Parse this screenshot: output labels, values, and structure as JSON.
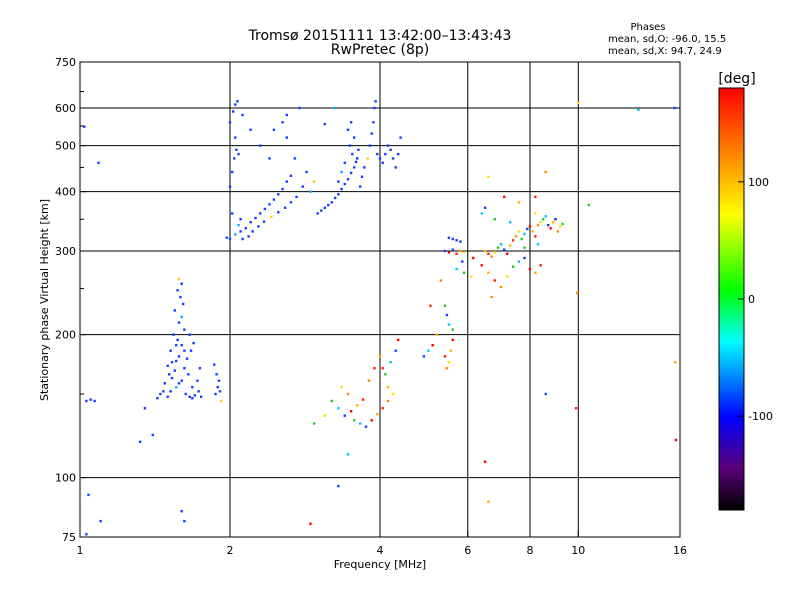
{
  "chart_data": {
    "type": "scatter",
    "title": "Tromsø 20151111 13:42:00–13:43:43",
    "subtitle": "RwPretec (8p)",
    "xlabel": "Frequency [MHz]",
    "ylabel": "Stationary phase Virtual Height [km]",
    "x_scale": "log",
    "y_scale": "log",
    "xlim": [
      1,
      16
    ],
    "ylim": [
      75,
      750
    ],
    "x_ticks": [
      1,
      2,
      4,
      6,
      8,
      10,
      16
    ],
    "y_ticks": [
      75,
      100,
      200,
      300,
      400,
      500,
      600,
      750
    ],
    "grid": true,
    "phase_info": {
      "heading": "Phases",
      "line_o": "mean, sd,O: -96.0, 15.5",
      "line_x": "mean, sd,X:  94.7, 24.9"
    },
    "colorbar": {
      "label": "[deg]",
      "range": [
        -180,
        180
      ],
      "ticks": [
        "100",
        "0",
        "-100"
      ],
      "tick_values": [
        100,
        0,
        -100
      ]
    },
    "series": [
      {
        "points": [
          [
            1.03,
            145
          ],
          [
            1.05,
            146
          ],
          [
            1.07,
            145
          ],
          [
            1.09,
            460
          ],
          [
            1.02,
            548
          ],
          [
            1.04,
            92
          ],
          [
            1.1,
            81
          ],
          [
            1.03,
            76
          ],
          [
            1.5,
            148
          ],
          [
            1.52,
            152
          ],
          [
            1.48,
            158
          ],
          [
            1.53,
            162
          ],
          [
            1.55,
            168
          ],
          [
            1.5,
            172
          ],
          [
            1.56,
            176
          ],
          [
            1.58,
            180
          ],
          [
            1.52,
            185
          ],
          [
            1.6,
            190
          ],
          [
            1.57,
            195
          ],
          [
            1.54,
            200
          ],
          [
            1.62,
            205
          ],
          [
            1.58,
            212
          ],
          [
            1.6,
            218
          ],
          [
            1.55,
            225
          ],
          [
            1.61,
            232
          ],
          [
            1.59,
            240
          ],
          [
            1.57,
            248
          ],
          [
            1.6,
            256
          ],
          [
            1.58,
            262
          ],
          [
            1.63,
            150
          ],
          [
            1.66,
            148
          ],
          [
            1.7,
            149
          ],
          [
            1.75,
            148
          ],
          [
            1.68,
            155
          ],
          [
            1.72,
            160
          ],
          [
            1.65,
            165
          ],
          [
            1.74,
            170
          ],
          [
            1.45,
            150
          ],
          [
            1.43,
            147
          ],
          [
            1.47,
            152
          ],
          [
            1.64,
            178
          ],
          [
            1.67,
            185
          ],
          [
            1.69,
            192
          ],
          [
            1.66,
            200
          ],
          [
            1.62,
            185
          ],
          [
            1.56,
            155
          ],
          [
            1.6,
            160
          ],
          [
            1.53,
            175
          ],
          [
            1.51,
            165
          ],
          [
            1.68,
            147
          ],
          [
            1.73,
            152
          ],
          [
            1.56,
            190
          ],
          [
            1.62,
            170
          ],
          [
            1.58,
            158
          ],
          [
            1.87,
            150
          ],
          [
            1.89,
            155
          ],
          [
            1.9,
            160
          ],
          [
            1.92,
            145
          ],
          [
            1.91,
            152
          ],
          [
            1.88,
            165
          ],
          [
            1.6,
            85
          ],
          [
            1.62,
            81
          ],
          [
            1.35,
            140
          ],
          [
            1.4,
            123
          ],
          [
            1.32,
            119
          ],
          [
            1.86,
            173
          ],
          [
            1.97,
            320
          ],
          [
            2.0,
            318
          ],
          [
            2.05,
            325
          ],
          [
            2.1,
            330
          ],
          [
            2.15,
            335
          ],
          [
            2.2,
            345
          ],
          [
            2.25,
            352
          ],
          [
            2.3,
            360
          ],
          [
            2.35,
            368
          ],
          [
            2.4,
            376
          ],
          [
            2.45,
            385
          ],
          [
            2.5,
            395
          ],
          [
            2.55,
            405
          ],
          [
            2.6,
            420
          ],
          [
            2.65,
            432
          ],
          [
            2.12,
            318
          ],
          [
            2.18,
            322
          ],
          [
            2.22,
            330
          ],
          [
            2.28,
            338
          ],
          [
            2.34,
            346
          ],
          [
            2.42,
            354
          ],
          [
            2.5,
            362
          ],
          [
            2.58,
            370
          ],
          [
            2.65,
            380
          ],
          [
            2.72,
            390
          ],
          [
            2.08,
            340
          ],
          [
            2.1,
            350
          ],
          [
            2.02,
            360
          ],
          [
            2.0,
            410
          ],
          [
            2.02,
            440
          ],
          [
            2.04,
            470
          ],
          [
            2.06,
            490
          ],
          [
            2.08,
            480
          ],
          [
            2.05,
            520
          ],
          [
            2.0,
            560
          ],
          [
            2.03,
            590
          ],
          [
            2.05,
            610
          ],
          [
            2.07,
            620
          ],
          [
            2.12,
            580
          ],
          [
            2.2,
            540
          ],
          [
            2.3,
            500
          ],
          [
            2.4,
            470
          ],
          [
            2.45,
            540
          ],
          [
            2.55,
            560
          ],
          [
            2.6,
            520
          ],
          [
            2.7,
            470
          ],
          [
            2.8,
            410
          ],
          [
            2.85,
            440
          ],
          [
            2.9,
            400
          ],
          [
            2.95,
            420
          ],
          [
            2.76,
            600
          ],
          [
            2.6,
            580
          ],
          [
            3.0,
            360
          ],
          [
            3.05,
            365
          ],
          [
            3.1,
            370
          ],
          [
            3.15,
            375
          ],
          [
            3.2,
            380
          ],
          [
            3.25,
            388
          ],
          [
            3.3,
            395
          ],
          [
            3.35,
            405
          ],
          [
            3.4,
            415
          ],
          [
            3.45,
            425
          ],
          [
            3.5,
            438
          ],
          [
            3.55,
            450
          ],
          [
            3.58,
            462
          ],
          [
            3.52,
            480
          ],
          [
            3.48,
            500
          ],
          [
            3.55,
            520
          ],
          [
            3.45,
            540
          ],
          [
            3.5,
            560
          ],
          [
            3.4,
            460
          ],
          [
            3.35,
            440
          ],
          [
            3.3,
            420
          ],
          [
            3.6,
            470
          ],
          [
            3.62,
            490
          ],
          [
            3.65,
            410
          ],
          [
            3.68,
            430
          ],
          [
            3.72,
            450
          ],
          [
            3.78,
            470
          ],
          [
            3.82,
            500
          ],
          [
            3.85,
            530
          ],
          [
            3.88,
            560
          ],
          [
            3.9,
            600
          ],
          [
            3.92,
            620
          ],
          [
            3.95,
            480
          ],
          [
            4.0,
            470
          ],
          [
            4.05,
            460
          ],
          [
            4.1,
            480
          ],
          [
            4.15,
            500
          ],
          [
            4.2,
            490
          ],
          [
            4.25,
            470
          ],
          [
            4.3,
            450
          ],
          [
            4.35,
            480
          ],
          [
            4.4,
            520
          ],
          [
            3.25,
            600
          ],
          [
            3.1,
            555
          ],
          [
            3.2,
            145
          ],
          [
            3.3,
            140
          ],
          [
            3.4,
            135
          ],
          [
            3.5,
            138
          ],
          [
            3.6,
            142
          ],
          [
            3.7,
            146
          ],
          [
            3.45,
            150
          ],
          [
            3.35,
            155
          ],
          [
            3.55,
            132
          ],
          [
            3.65,
            130
          ],
          [
            3.75,
            128
          ],
          [
            3.85,
            132
          ],
          [
            3.95,
            136
          ],
          [
            4.05,
            140
          ],
          [
            4.15,
            145
          ],
          [
            4.25,
            150
          ],
          [
            4.1,
            165
          ],
          [
            4.2,
            175
          ],
          [
            4.3,
            185
          ],
          [
            4.35,
            195
          ],
          [
            4.0,
            180
          ],
          [
            3.9,
            170
          ],
          [
            3.8,
            160
          ],
          [
            3.1,
            135
          ],
          [
            2.95,
            130
          ],
          [
            3.45,
            112
          ],
          [
            3.3,
            96
          ],
          [
            2.9,
            80
          ],
          [
            4.15,
            155
          ],
          [
            4.05,
            170
          ],
          [
            5.5,
            320
          ],
          [
            5.6,
            318
          ],
          [
            5.7,
            316
          ],
          [
            5.8,
            314
          ],
          [
            5.4,
            300
          ],
          [
            5.5,
            298
          ],
          [
            5.6,
            302
          ],
          [
            5.7,
            296
          ],
          [
            5.8,
            300
          ],
          [
            5.9,
            298
          ],
          [
            5.4,
            230
          ],
          [
            5.5,
            210
          ],
          [
            5.45,
            220
          ],
          [
            5.6,
            195
          ],
          [
            5.55,
            185
          ],
          [
            5.4,
            180
          ],
          [
            5.45,
            170
          ],
          [
            5.5,
            175
          ],
          [
            5.6,
            205
          ],
          [
            5.0,
            185
          ],
          [
            4.9,
            180
          ],
          [
            5.1,
            190
          ],
          [
            5.2,
            200
          ],
          [
            5.05,
            230
          ],
          [
            5.3,
            260
          ],
          [
            6.1,
            265
          ],
          [
            5.9,
            270
          ],
          [
            5.7,
            275
          ],
          [
            5.85,
            285
          ],
          [
            6.15,
            290
          ],
          [
            6.5,
            300
          ],
          [
            6.6,
            296
          ],
          [
            6.7,
            292
          ],
          [
            6.8,
            298
          ],
          [
            6.9,
            305
          ],
          [
            7.0,
            310
          ],
          [
            7.1,
            302
          ],
          [
            7.2,
            296
          ],
          [
            7.3,
            308
          ],
          [
            7.4,
            316
          ],
          [
            7.5,
            322
          ],
          [
            7.6,
            330
          ],
          [
            7.7,
            318
          ],
          [
            7.8,
            326
          ],
          [
            7.9,
            334
          ],
          [
            8.0,
            338
          ],
          [
            8.1,
            330
          ],
          [
            8.2,
            322
          ],
          [
            8.3,
            340
          ],
          [
            8.4,
            345
          ],
          [
            8.5,
            350
          ],
          [
            8.6,
            355
          ],
          [
            8.7,
            340
          ],
          [
            8.8,
            335
          ],
          [
            8.9,
            345
          ],
          [
            9.0,
            350
          ],
          [
            9.1,
            330
          ],
          [
            9.2,
            338
          ],
          [
            9.3,
            342
          ],
          [
            6.4,
            360
          ],
          [
            6.5,
            370
          ],
          [
            7.1,
            390
          ],
          [
            7.6,
            380
          ],
          [
            8.2,
            390
          ],
          [
            8.6,
            440
          ],
          [
            8.2,
            360
          ],
          [
            6.8,
            350
          ],
          [
            7.3,
            345
          ],
          [
            9.0,
            350
          ],
          [
            6.4,
            280
          ],
          [
            6.6,
            270
          ],
          [
            6.8,
            260
          ],
          [
            7.0,
            252
          ],
          [
            7.2,
            265
          ],
          [
            7.4,
            278
          ],
          [
            7.6,
            285
          ],
          [
            7.8,
            290
          ],
          [
            8.0,
            275
          ],
          [
            8.2,
            270
          ],
          [
            8.4,
            280
          ],
          [
            6.7,
            240
          ],
          [
            6.6,
            430
          ],
          [
            7.8,
            305
          ],
          [
            8.3,
            310
          ],
          [
            8.6,
            150
          ],
          [
            6.5,
            108
          ],
          [
            6.6,
            89
          ],
          [
            9.9,
            140
          ],
          [
            9.95,
            245
          ],
          [
            10.0,
            615
          ],
          [
            10.5,
            375
          ],
          [
            13.2,
            595
          ],
          [
            15.6,
            600
          ],
          [
            15.7,
            120
          ],
          [
            15.65,
            175
          ]
        ]
      }
    ]
  }
}
